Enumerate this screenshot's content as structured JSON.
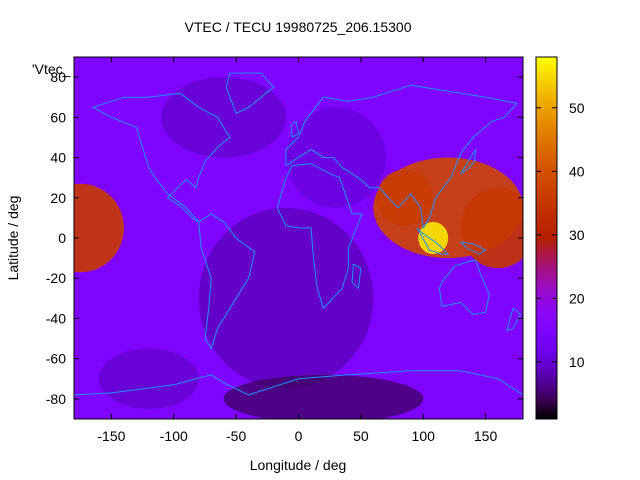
{
  "chart_data": {
    "type": "heatmap",
    "title": "VTEC / TECU 19980725_206.15300",
    "xlabel": "Longitude / deg",
    "ylabel": "Latitude / deg",
    "key_label": "'Vtec_",
    "xlim": [
      -180,
      180
    ],
    "ylim": [
      -90,
      90
    ],
    "xticks": [
      -150,
      -100,
      -50,
      0,
      50,
      100,
      150
    ],
    "yticks": [
      -80,
      -60,
      -40,
      -20,
      0,
      20,
      40,
      60,
      80
    ],
    "colorbar": {
      "min": 1,
      "max": 58,
      "ticks": [
        10,
        20,
        30,
        40,
        50
      ]
    },
    "blobs": [
      {
        "lon": -175,
        "lat": 5,
        "value": 36,
        "rlon": 35,
        "rlat": 22
      },
      {
        "lon": 120,
        "lat": 15,
        "value": 38,
        "rlon": 60,
        "rlat": 25
      },
      {
        "lon": 108,
        "lat": 0,
        "value": 56,
        "rlon": 12,
        "rlat": 8
      },
      {
        "lon": 85,
        "lat": 20,
        "value": 36,
        "rlon": 22,
        "rlat": 14
      },
      {
        "lon": 160,
        "lat": 5,
        "value": 35,
        "rlon": 30,
        "rlat": 20
      }
    ],
    "background_value": 15,
    "coastline_color": "#1e90ff"
  }
}
